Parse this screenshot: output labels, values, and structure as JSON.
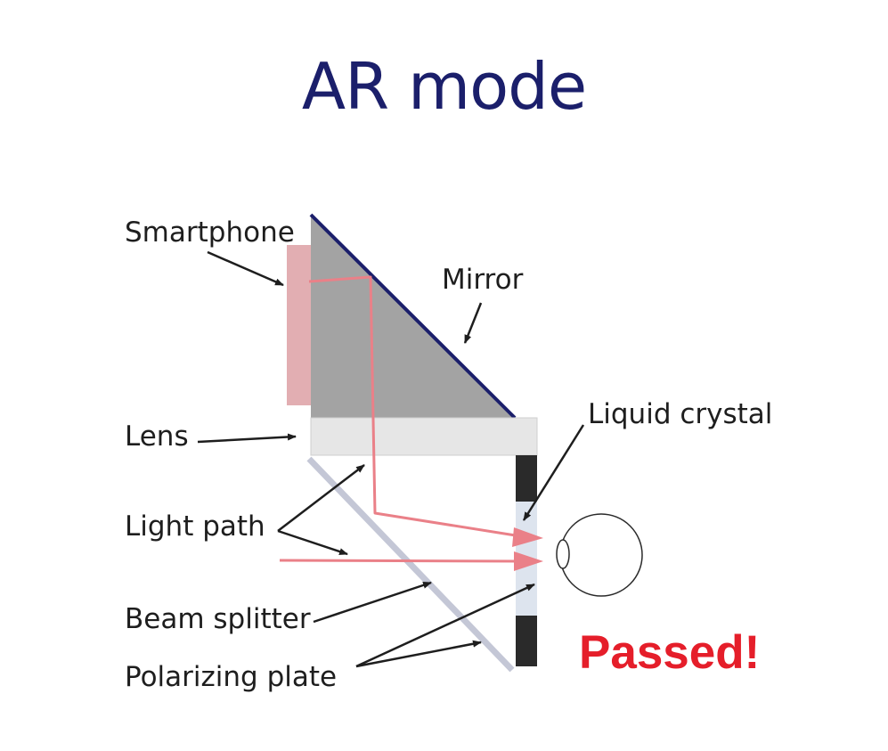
{
  "title": "AR mode",
  "labels": {
    "smartphone": "Smartphone",
    "mirror": "Mirror",
    "lens": "Lens",
    "liquid_crystal": "Liquid crystal",
    "light_path": "Light path",
    "beam_splitter": "Beam splitter",
    "polarizing_plate": "Polarizing plate",
    "passed": "Passed!"
  },
  "colors": {
    "title": "#1b1f6b",
    "mirror": "#1b1f6b",
    "prism": "#a3a3a3",
    "smartphone": "#e2aeb2",
    "lens": "#e6e6e6",
    "light": "#ea8088",
    "passed": "#e51e2a",
    "liquid_crystal_dark": "#2a2a2a",
    "liquid_crystal_light": "#dde4ee",
    "beam_splitter": "#c4c7d6"
  },
  "icons": {
    "eye": "eye-icon"
  }
}
